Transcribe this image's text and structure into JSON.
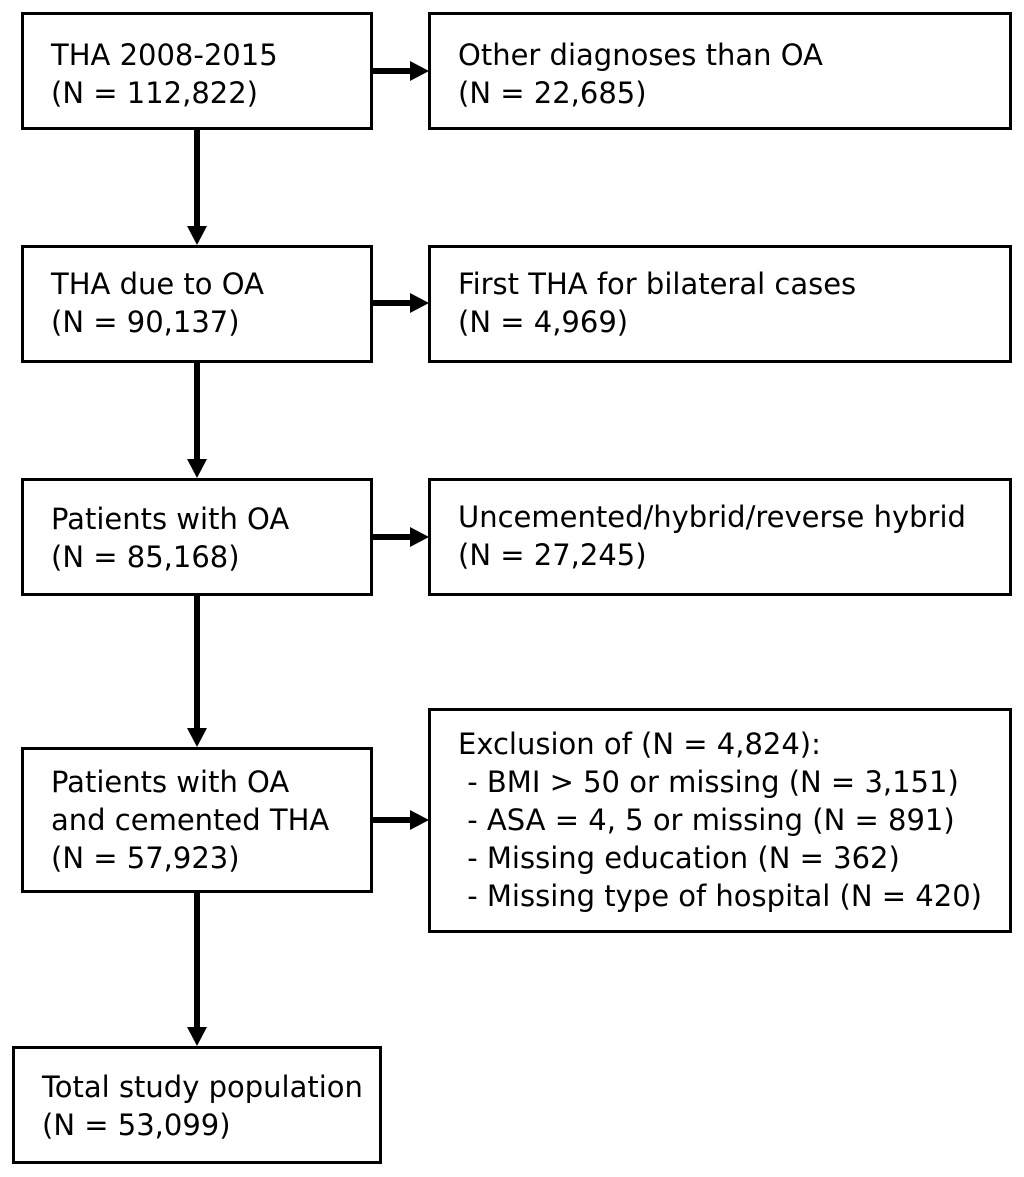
{
  "flowchart": {
    "step1": {
      "lines": [
        "THA 2008-2015",
        "(N = 112,822)"
      ]
    },
    "excl1": {
      "lines": [
        "Other diagnoses than OA",
        "(N = 22,685)"
      ]
    },
    "step2": {
      "lines": [
        "THA due to OA",
        "(N = 90,137)"
      ]
    },
    "excl2": {
      "lines": [
        "First THA for bilateral cases",
        "(N = 4,969)"
      ]
    },
    "step3": {
      "lines": [
        "Patients with OA",
        "(N = 85,168)"
      ]
    },
    "excl3": {
      "lines": [
        "Uncemented/hybrid/reverse hybrid",
        "(N = 27,245)"
      ]
    },
    "step4": {
      "lines": [
        "Patients with OA",
        "and cemented THA",
        "(N = 57,923)"
      ]
    },
    "excl4": {
      "lines": [
        "Exclusion of (N = 4,824):",
        " - BMI > 50 or missing (N = 3,151)",
        " - ASA = 4, 5 or missing (N = 891)",
        " - Missing education (N = 362)",
        " - Missing type of hospital (N = 420)"
      ]
    },
    "final": {
      "lines": [
        "Total study population",
        "(N = 53,099)"
      ]
    }
  }
}
